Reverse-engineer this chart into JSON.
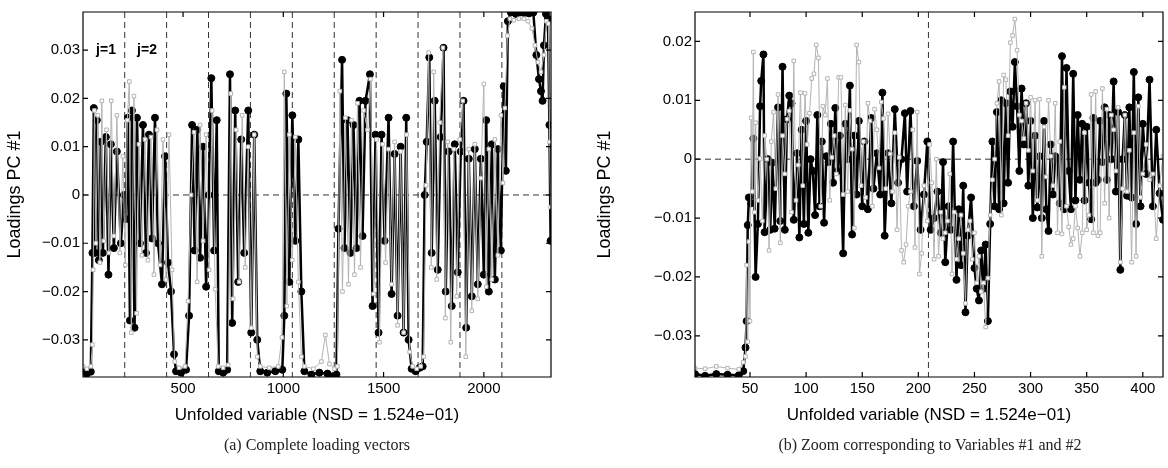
{
  "chart_data": [
    {
      "type": "line",
      "xlabel": "Unfolded variable (NSD = 1.524e−01)",
      "ylabel": "Loadings PC #1",
      "xlim": [
        1,
        2335
      ],
      "xticks": [
        500,
        1000,
        1500,
        2000
      ],
      "ylim": [
        -0.0377,
        0.0379
      ],
      "yticks": [
        -0.03,
        -0.02,
        -0.01,
        0,
        0.01,
        0.02,
        0.03
      ],
      "grid": false,
      "legend": false,
      "ref_lines": [
        {
          "axis": "y",
          "value": 0,
          "line_style": "dashed"
        },
        {
          "axis": "x",
          "value": 209,
          "line_style": "dashed"
        },
        {
          "axis": "x",
          "value": 418,
          "line_style": "dashed"
        },
        {
          "axis": "x",
          "value": 627,
          "line_style": "dashed"
        },
        {
          "axis": "x",
          "value": 836,
          "line_style": "dashed"
        },
        {
          "axis": "x",
          "value": 1045,
          "line_style": "dashed"
        },
        {
          "axis": "x",
          "value": 1254,
          "line_style": "dashed"
        },
        {
          "axis": "x",
          "value": 1463,
          "line_style": "dashed"
        },
        {
          "axis": "x",
          "value": 1672,
          "line_style": "dashed"
        },
        {
          "axis": "x",
          "value": 1881,
          "line_style": "dashed"
        },
        {
          "axis": "x",
          "value": 2090,
          "line_style": "dashed"
        }
      ],
      "annotations": [
        "j=1",
        "j=2"
      ],
      "title": "(a)  Complete loading vectors",
      "series": [
        {
          "color": "#000000",
          "marker": "circle",
          "x": [
            1,
            20,
            40,
            48,
            55,
            62,
            70,
            80,
            90,
            100,
            115,
            128,
            140,
            155,
            170,
            190,
            205,
            215,
            225,
            235,
            245,
            258,
            270,
            285,
            300,
            315,
            330,
            345,
            360,
            375,
            395,
            410,
            425,
            440,
            455,
            465,
            490,
            515,
            530,
            545,
            558,
            571,
            585,
            600,
            615,
            628,
            641,
            655,
            668,
            678,
            700,
            720,
            734,
            745,
            760,
            775,
            790,
            805,
            825,
            840,
            855,
            870,
            885,
            920,
            960,
            995,
            1005,
            1015,
            1030,
            1045,
            1060,
            1075,
            1090,
            1105,
            1140,
            1180,
            1220,
            1250,
            1265,
            1275,
            1293,
            1305,
            1320,
            1335,
            1350,
            1365,
            1380,
            1395,
            1410,
            1432,
            1445,
            1460,
            1475,
            1490,
            1505,
            1525,
            1540,
            1555,
            1570,
            1585,
            1600,
            1613,
            1625,
            1640,
            1660,
            1680,
            1695,
            1705,
            1715,
            1728,
            1740,
            1755,
            1770,
            1785,
            1799,
            1810,
            1825,
            1840,
            1855,
            1870,
            1885,
            1899,
            1912,
            1925,
            1940,
            1955,
            1970,
            1985,
            2000,
            2012,
            2025,
            2040,
            2055,
            2070,
            2085,
            2099,
            2110,
            2120,
            2135,
            2160,
            2180,
            2200,
            2225,
            2247,
            2262,
            2275,
            2285,
            2293,
            2300,
            2310,
            2320,
            2327,
            2333
          ],
          "values": [
            -0.0365,
            -0.037,
            -0.0366,
            -0.012,
            0.018,
            -0.012,
            0.0155,
            -0.0135,
            0.011,
            -0.012,
            0.012,
            -0.0165,
            0.0105,
            -0.011,
            0.009,
            -0.01,
            0.0,
            -0.005,
            0.016,
            -0.026,
            0.0175,
            -0.0275,
            0.016,
            -0.01,
            0.0145,
            -0.012,
            0.0125,
            -0.009,
            0.016,
            -0.01,
            -0.0185,
            0.008,
            -0.014,
            -0.02,
            -0.033,
            -0.0365,
            -0.0368,
            -0.0362,
            -0.025,
            0.0145,
            -0.0115,
            0.0135,
            -0.013,
            0.01,
            -0.019,
            0.0,
            0.0242,
            -0.0115,
            0.0155,
            -0.0365,
            -0.0368,
            -0.0362,
            0.025,
            -0.0265,
            0.0175,
            -0.018,
            0.0115,
            -0.012,
            0.0175,
            -0.0285,
            0.0125,
            -0.03,
            -0.0365,
            -0.0368,
            -0.0365,
            -0.0362,
            -0.025,
            0.021,
            -0.018,
            0.0165,
            -0.0095,
            0.0115,
            -0.02,
            -0.0365,
            -0.0372,
            -0.0368,
            -0.037,
            -0.0375,
            -0.0372,
            -0.007,
            0.028,
            -0.011,
            0.0155,
            -0.012,
            0.0145,
            -0.011,
            0.0195,
            -0.0085,
            0.0195,
            0.025,
            -0.023,
            0.0125,
            -0.0285,
            0.0125,
            -0.0095,
            0.016,
            -0.0205,
            0.0085,
            -0.025,
            0.01,
            -0.0285,
            0.016,
            -0.03,
            -0.036,
            -0.0365,
            -0.0358,
            -0.0355,
            0.0,
            0.011,
            0.0285,
            -0.012,
            0.0195,
            -0.0155,
            0.012,
            0.0305,
            -0.02,
            0.009,
            -0.023,
            0.0105,
            -0.016,
            0.009,
            0.0195,
            -0.0275,
            0.0075,
            -0.021,
            0.0095,
            -0.0185,
            0.0075,
            -0.0165,
            0.0155,
            -0.02,
            0.0105,
            -0.0175,
            0.0095,
            -0.0115,
            0.0225,
            0.005,
            0.036,
            0.0378,
            0.0375,
            0.0378,
            0.0377,
            0.0376,
            0.0378,
            0.029,
            0.024,
            0.0215,
            0.0195,
            0.031,
            0.0375,
            0.0365,
            0.0145,
            -0.0095
          ]
        },
        {
          "color": "#b4b4b4",
          "marker": "square",
          "x": [
            1,
            20,
            40,
            48,
            52,
            58,
            65,
            75,
            85,
            95,
            105,
            118,
            130,
            142,
            155,
            170,
            185,
            200,
            212,
            222,
            232,
            242,
            255,
            268,
            280,
            295,
            310,
            325,
            340,
            355,
            370,
            385,
            400,
            415,
            430,
            445,
            458,
            480,
            510,
            525,
            540,
            555,
            570,
            585,
            600,
            615,
            630,
            645,
            660,
            675,
            700,
            725,
            738,
            750,
            765,
            780,
            795,
            810,
            825,
            840,
            855,
            870,
            885,
            930,
            975,
            993,
            1005,
            1018,
            1030,
            1045,
            1060,
            1075,
            1090,
            1105,
            1150,
            1190,
            1210,
            1230,
            1255,
            1270,
            1282,
            1295,
            1310,
            1325,
            1340,
            1355,
            1370,
            1385,
            1400,
            1420,
            1435,
            1450,
            1465,
            1480,
            1495,
            1510,
            1525,
            1540,
            1555,
            1570,
            1585,
            1600,
            1615,
            1630,
            1645,
            1665,
            1685,
            1700,
            1712,
            1725,
            1738,
            1750,
            1765,
            1780,
            1796,
            1808,
            1820,
            1835,
            1850,
            1865,
            1880,
            1895,
            1910,
            1925,
            1940,
            1955,
            1970,
            1985,
            2000,
            2012,
            2025,
            2040,
            2055,
            2070,
            2085,
            2095,
            2105,
            2118,
            2130,
            2150,
            2175,
            2200,
            2220,
            2240,
            2255,
            2270,
            2285,
            2300,
            2312,
            2322,
            2328,
            2333
          ],
          "values": [
            -0.0355,
            -0.036,
            -0.0355,
            -0.031,
            -0.0155,
            0.0175,
            -0.01,
            0.0165,
            -0.014,
            0.0195,
            -0.0095,
            0.0135,
            -0.012,
            0.0195,
            -0.0085,
            0.0165,
            -0.012,
            0.008,
            -0.0145,
            0.0155,
            0.0235,
            -0.0285,
            0.0205,
            -0.0245,
            0.0105,
            -0.0125,
            0.0115,
            -0.0135,
            0.012,
            -0.0165,
            0.0135,
            -0.0145,
            0.0115,
            -0.0175,
            0.0125,
            -0.0155,
            -0.0345,
            -0.0358,
            -0.0355,
            -0.022,
            0.0,
            0.013,
            -0.018,
            0.0145,
            -0.0095,
            0.0125,
            -0.0155,
            0.0175,
            -0.0195,
            -0.0355,
            -0.0358,
            -0.0352,
            0.021,
            -0.0215,
            0.0135,
            -0.018,
            0.0165,
            -0.015,
            0.01,
            -0.0275,
            0.0125,
            -0.0335,
            -0.0355,
            -0.0358,
            -0.0355,
            -0.0295,
            0.0255,
            -0.023,
            0.0125,
            -0.0135,
            0.012,
            -0.018,
            -0.0335,
            -0.0355,
            -0.036,
            -0.0345,
            -0.029,
            -0.035,
            -0.036,
            -0.0355,
            0.0215,
            -0.02,
            0.016,
            -0.0185,
            0.0155,
            -0.0165,
            0.019,
            -0.015,
            0.0175,
            0.0135,
            0.024,
            -0.0205,
            0.0115,
            -0.0305,
            0.0105,
            -0.014,
            0.0095,
            -0.0185,
            0.011,
            -0.027,
            0.009,
            -0.0285,
            0.0125,
            -0.0325,
            -0.0355,
            -0.036,
            -0.0355,
            -0.0335,
            0.002,
            0.0295,
            -0.015,
            0.0255,
            -0.0175,
            0.015,
            0.0305,
            -0.0255,
            0.011,
            -0.0305,
            0.0095,
            -0.021,
            0.0115,
            0.0195,
            -0.0335,
            0.0095,
            -0.024,
            0.0105,
            -0.0215,
            0.0035,
            0.023,
            -0.019,
            0.0095,
            -0.0175,
            0.0115,
            -0.0125,
            0.0165,
            0.0025,
            0.018,
            0.033,
            0.0365,
            0.0362,
            0.0365,
            0.0365,
            0.036,
            0.0345,
            0.031,
            0.0275,
            0.0255,
            0.029,
            0.036,
            0.0355,
            0.011,
            -0.0025
          ]
        }
      ]
    },
    {
      "type": "line",
      "xlabel": "Unfolded variable (NSD = 1.524e−01)",
      "ylabel": "Loadings PC #1",
      "xlim": [
        1,
        418
      ],
      "xticks": [
        50,
        100,
        150,
        200,
        250,
        300,
        350,
        400
      ],
      "ylim": [
        -0.037,
        0.025
      ],
      "yticks": [
        -0.03,
        -0.02,
        -0.01,
        0,
        0.01,
        0.02
      ],
      "grid": false,
      "legend": false,
      "ref_lines": [
        {
          "axis": "y",
          "value": 0,
          "line_style": "dashed"
        },
        {
          "axis": "x",
          "value": 209,
          "line_style": "dashed"
        }
      ],
      "title": "(b)  Zoom corresponding to Variables #1 and #2",
      "series": [
        {
          "color": "#000000",
          "marker": "circle",
          "x": [
            1,
            10,
            20,
            30,
            40,
            44,
            46,
            47,
            48,
            49,
            51,
            53,
            55,
            57,
            59,
            60,
            62,
            63,
            66,
            68,
            70,
            72,
            75,
            77,
            79,
            81,
            83,
            85,
            87,
            89,
            92,
            94,
            96,
            98,
            100,
            102,
            104,
            106,
            108,
            110,
            112,
            114,
            116,
            118,
            120,
            122,
            124,
            126,
            128,
            130,
            133,
            135,
            137,
            139,
            141,
            143,
            145,
            147,
            150,
            152,
            155,
            158,
            160,
            163,
            166,
            168,
            170,
            173,
            176,
            179,
            182,
            185,
            188,
            190,
            193,
            196,
            199,
            202,
            205,
            208,
            211,
            214,
            217,
            220,
            222,
            224,
            227,
            229,
            231,
            234,
            236,
            238,
            240,
            242,
            244,
            247,
            250,
            252,
            254,
            256,
            258,
            260,
            262,
            264,
            266,
            268,
            270,
            272,
            274,
            276,
            278,
            280,
            282,
            284,
            286,
            288,
            290,
            292,
            294,
            296,
            298,
            300,
            302,
            304,
            306,
            308,
            310,
            312,
            314,
            316,
            318,
            320,
            322,
            324,
            326,
            328,
            330,
            332,
            334,
            336,
            338,
            340,
            342,
            344,
            346,
            348,
            350,
            352,
            354,
            356,
            358,
            360,
            362,
            364,
            366,
            368,
            370,
            372,
            374,
            376,
            378,
            380,
            382,
            384,
            386,
            388,
            390,
            392,
            394,
            396,
            398,
            400,
            403,
            406,
            409,
            412,
            415,
            418
          ],
          "values": [
            -0.0365,
            -0.0368,
            -0.0365,
            -0.0366,
            -0.0367,
            -0.036,
            -0.032,
            -0.0275,
            -0.0112,
            -0.0065,
            -0.0075,
            0.0035,
            -0.02,
            -0.011,
            0.009,
            0.0133,
            0.0178,
            -0.0124,
            0.0,
            -0.012,
            -0.0006,
            -0.0118,
            0.0088,
            -0.0105,
            0.0157,
            -0.012,
            0.0068,
            0.0108,
            0.0095,
            -0.0103,
            0.001,
            -0.0133,
            0.005,
            -0.011,
            0.0065,
            -0.0125,
            0.0,
            -0.002,
            -0.0095,
            0.0075,
            -0.008,
            0.003,
            -0.0108,
            0.0005,
            -0.0005,
            0.006,
            -0.004,
            0.0087,
            -0.002,
            0.004,
            -0.016,
            0.006,
            0.0,
            0.0125,
            -0.0128,
            0.004,
            -0.006,
            0.0065,
            -0.008,
            0.003,
            -0.0085,
            0.007,
            -0.005,
            0.001,
            -0.006,
            0.0113,
            -0.013,
            0.001,
            -0.0075,
            0.0085,
            -0.004,
            0.0,
            0.0078,
            -0.0055,
            0.0082,
            -0.008,
            -0.0003,
            -0.012,
            -0.006,
            0.003,
            -0.012,
            -0.01,
            -0.0055,
            -0.0125,
            -0.0005,
            -0.0175,
            -0.008,
            -0.012,
            0.003,
            -0.0205,
            -0.0085,
            -0.018,
            -0.0045,
            -0.026,
            -0.013,
            -0.0065,
            -0.0185,
            -0.022,
            -0.024,
            -0.0155,
            -0.022,
            -0.0145,
            -0.0275,
            -0.011,
            0.003,
            -0.008,
            0.008,
            -0.0085,
            0.01,
            -0.0075,
            0.0095,
            -0.004,
            0.0115,
            0.0055,
            0.0165,
            0.009,
            -0.002,
            0.012,
            0.0025,
            0.0095,
            -0.0045,
            0.0065,
            -0.01,
            0.004,
            -0.0082,
            0.0005,
            -0.01,
            0.0065,
            -0.0085,
            -0.0122,
            0.0025,
            -0.006,
            0.0005,
            0.0,
            -0.0075,
            0.0175,
            -0.0085,
            0.0155,
            -0.002,
            -0.0085,
            0.0145,
            -0.007,
            0.0075,
            -0.0035,
            0.006,
            -0.007,
            0.0055,
            -0.004,
            -0.0102,
            0.007,
            -0.004,
            -0.0035,
            0.0065,
            -0.0005,
            0.0088,
            -0.0035,
            0.0075,
            0.0,
            0.0132,
            -0.0055,
            0.008,
            -0.0188,
            0.0,
            0.0075,
            -0.0062,
            0.0088,
            -0.0065,
            0.0148,
            -0.011,
            0.0105,
            -0.008,
            0.006,
            -0.0025,
            0.0135,
            -0.008,
            0.005,
            -0.0058,
            -0.0103
          ]
        },
        {
          "color": "#b4b4b4",
          "marker": "square",
          "x": [
            1,
            10,
            20,
            30,
            40,
            44,
            46,
            47,
            48,
            49,
            50,
            51,
            52,
            53,
            54,
            55,
            57,
            59,
            61,
            63,
            65,
            67,
            69,
            71,
            73,
            75,
            77,
            79,
            81,
            83,
            85,
            87,
            89,
            91,
            93,
            95,
            97,
            99,
            101,
            103,
            105,
            107,
            109,
            111,
            113,
            115,
            117,
            119,
            121,
            123,
            125,
            127,
            129,
            131,
            133,
            135,
            137,
            139,
            141,
            143,
            145,
            147,
            149,
            151,
            153,
            155,
            157,
            159,
            161,
            163,
            165,
            167,
            169,
            171,
            173,
            175,
            177,
            179,
            181,
            183,
            185,
            187,
            189,
            191,
            193,
            195,
            197,
            199,
            201,
            203,
            205,
            208,
            210,
            212,
            214,
            216,
            218,
            220,
            222,
            224,
            226,
            228,
            230,
            232,
            234,
            236,
            238,
            240,
            242,
            244,
            246,
            248,
            250,
            252,
            254,
            256,
            258,
            260,
            262,
            264,
            266,
            268,
            270,
            272,
            274,
            276,
            278,
            280,
            282,
            284,
            286,
            288,
            290,
            292,
            294,
            296,
            298,
            300,
            302,
            304,
            306,
            308,
            310,
            312,
            314,
            316,
            318,
            320,
            322,
            324,
            326,
            328,
            330,
            332,
            334,
            336,
            338,
            340,
            342,
            344,
            346,
            348,
            350,
            352,
            354,
            356,
            358,
            360,
            362,
            364,
            366,
            368,
            370,
            372,
            374,
            376,
            378,
            380,
            382,
            384,
            386,
            388,
            390,
            392,
            394,
            396,
            398,
            400,
            403,
            406,
            409,
            412,
            415,
            418
          ],
          "values": [
            -0.0355,
            -0.0356,
            -0.0352,
            -0.0355,
            -0.0357,
            -0.0345,
            -0.0335,
            -0.018,
            -0.031,
            -0.014,
            -0.0275,
            0.007,
            -0.0055,
            0.0182,
            -0.009,
            0.0062,
            -0.007,
            0.0001,
            -0.0105,
            0.004,
            0.0,
            -0.0155,
            0.003,
            0.008,
            -0.005,
            0.011,
            -0.0142,
            0.004,
            -0.0025,
            0.0068,
            0.0082,
            -0.009,
            0.0167,
            -0.007,
            -0.001,
            0.0113,
            -0.0045,
            0.0112,
            0.0025,
            0.0078,
            0.0137,
            0.0145,
            0.0194,
            0.0172,
            -0.008,
            0.009,
            0.0075,
            0.0137,
            -0.007,
            0.0003,
            0.004,
            -0.0025,
            0.0139,
            0.0139,
            -0.006,
            0.0092,
            -0.0055,
            0.0083,
            0.0017,
            -0.0117,
            0.0194,
            0.0165,
            -0.0045,
            0.003,
            -0.0065,
            0.0095,
            0.0065,
            -0.008,
            0.0085,
            0.005,
            -0.0015,
            0.0097,
            0.0069,
            -0.005,
            0.0077,
            0.0009,
            -0.0055,
            0.0045,
            -0.012,
            0.0003,
            -0.0155,
            -0.0175,
            -0.0145,
            -0.008,
            -0.0055,
            0.005,
            -0.015,
            0.008,
            -0.0195,
            -0.016,
            -0.0045,
            -0.0105,
            0.0025,
            -0.004,
            -0.017,
            0.0,
            -0.0165,
            -0.009,
            -0.0135,
            -0.0125,
            -0.0105,
            -0.0025,
            -0.0195,
            -0.009,
            -0.017,
            -0.0135,
            -0.0095,
            -0.016,
            -0.0245,
            -0.012,
            -0.0105,
            -0.017,
            -0.0125,
            -0.021,
            -0.0165,
            -0.0225,
            -0.021,
            -0.0285,
            -0.0202,
            -0.0095,
            -0.0035,
            0.0,
            0.0095,
            0.0132,
            -0.0095,
            0.0143,
            0.0135,
            0.004,
            0.0198,
            0.021,
            0.0238,
            0.0185,
            0.0075,
            0.0065,
            0.0035,
            0.0095,
            0.0015,
            0.0105,
            -0.002,
            0.01,
            -0.007,
            0.0102,
            -0.0165,
            0.0055,
            -0.003,
            0.01,
            0.0005,
            -0.0045,
            0.0095,
            -0.0125,
            0.003,
            -0.0127,
            0.0122,
            -0.008,
            -0.0115,
            -0.0145,
            -0.0135,
            -0.008,
            -0.0117,
            -0.0165,
            -0.0125,
            0.0045,
            -0.012,
            -0.0095,
            0.011,
            -0.0125,
            0.0115,
            -0.013,
            -0.0125,
            0.012,
            -0.0075,
            0.0085,
            -0.01,
            0.0075,
            0.005,
            -0.002,
            0.0088,
            -0.0175,
            -0.005,
            0.0075,
            -0.0055,
            0.0015,
            -0.0175,
            0.0045,
            -0.0165,
            0.009,
            -0.0065,
            -0.0025,
            0.0025,
            -0.0035,
            -0.0025,
            -0.0135,
            -0.0045,
            0.0005
          ]
        }
      ]
    }
  ]
}
